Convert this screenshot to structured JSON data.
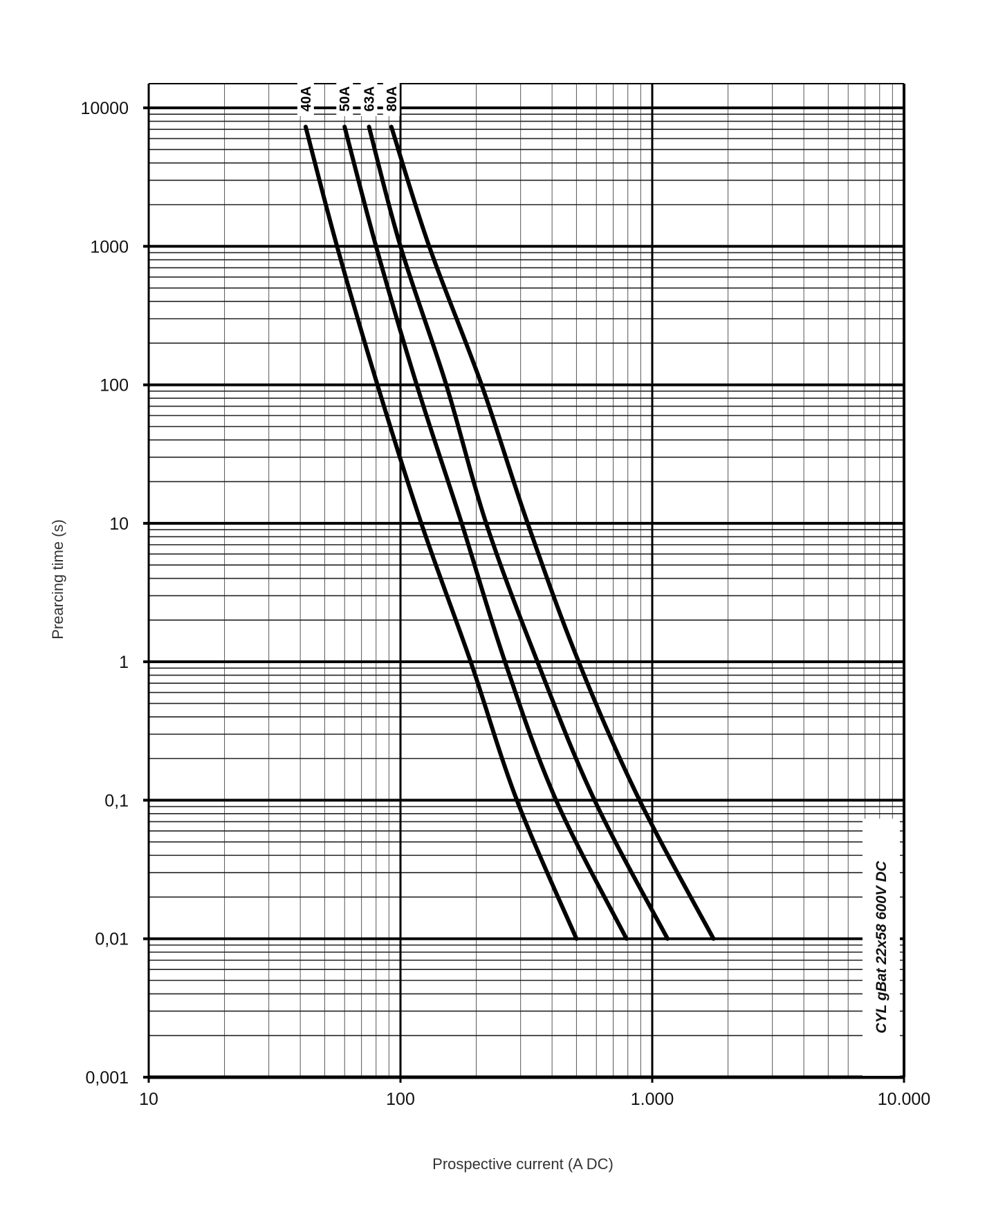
{
  "chart_data": {
    "type": "line",
    "title": "CYL gBat 22x58 600V DC",
    "xlabel": "Prospective current (A DC)",
    "ylabel": "Prearcing time (s)",
    "xscale": "log",
    "yscale": "log",
    "xlim": [
      10,
      10000
    ],
    "ylim": [
      0.001,
      10000
    ],
    "x_ticks": [
      10,
      100,
      1000,
      10000
    ],
    "x_tick_labels": [
      "10",
      "100",
      "1.000",
      "10.000"
    ],
    "y_ticks": [
      10000,
      1000,
      100,
      10,
      1,
      0.1,
      0.01,
      0.001
    ],
    "y_tick_labels": [
      "10000",
      "1000",
      "100",
      "10",
      "1",
      "0,1",
      "0,01",
      "0,001"
    ],
    "grid": true,
    "legend_position": "curve labels at top, rotated",
    "annotation": "CYL gBat 22x58 600V DC",
    "series": [
      {
        "name": "40A",
        "points": [
          [
            42,
            7300
          ],
          [
            56,
            1000
          ],
          [
            81,
            100
          ],
          [
            121,
            10
          ],
          [
            190,
            1
          ],
          [
            290,
            0.1
          ],
          [
            500,
            0.01
          ]
        ]
      },
      {
        "name": "50A",
        "points": [
          [
            60,
            7300
          ],
          [
            80,
            1000
          ],
          [
            116,
            100
          ],
          [
            175,
            10
          ],
          [
            260,
            1
          ],
          [
            415,
            0.1
          ],
          [
            790,
            0.01
          ]
        ]
      },
      {
        "name": "63A",
        "points": [
          [
            75,
            7300
          ],
          [
            100,
            1000
          ],
          [
            152,
            100
          ],
          [
            219,
            10
          ],
          [
            350,
            1
          ],
          [
            590,
            0.1
          ],
          [
            1150,
            0.01
          ]
        ]
      },
      {
        "name": "80A",
        "points": [
          [
            92,
            7300
          ],
          [
            130,
            1000
          ],
          [
            210,
            100
          ],
          [
            320,
            10
          ],
          [
            510,
            1
          ],
          [
            890,
            0.1
          ],
          [
            1750,
            0.01
          ]
        ]
      }
    ]
  }
}
